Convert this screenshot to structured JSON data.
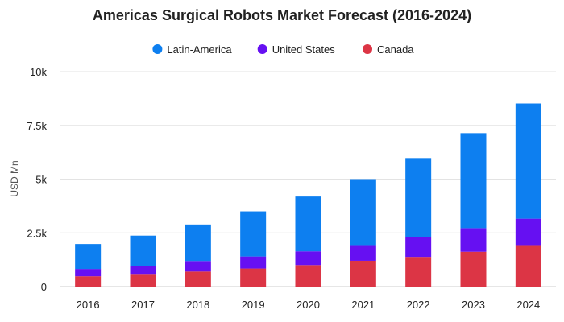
{
  "chart_data": {
    "type": "bar",
    "stacked": true,
    "title": "Americas Surgical Robots Market Forecast (2016-2024)",
    "ylabel": "USD Mn",
    "xlabel": "",
    "ylim": [
      0,
      10000
    ],
    "yticks": [
      0,
      2500,
      5000,
      7500,
      10000
    ],
    "ytick_labels": [
      "0",
      "2.5k",
      "5k",
      "7.5k",
      "10k"
    ],
    "grid": true,
    "legend_position": "top-center",
    "categories": [
      "2016",
      "2017",
      "2018",
      "2019",
      "2020",
      "2021",
      "2022",
      "2023",
      "2024"
    ],
    "series": [
      {
        "name": "Canada",
        "color": "#dc3545",
        "values": [
          480,
          590,
          700,
          840,
          1000,
          1200,
          1380,
          1620,
          1930
        ]
      },
      {
        "name": "United States",
        "color": "#6610f2",
        "values": [
          340,
          380,
          490,
          560,
          640,
          730,
          930,
          1100,
          1230
        ]
      },
      {
        "name": "Latin-America",
        "color": "#0d7ff0",
        "values": [
          1160,
          1400,
          1700,
          2100,
          2550,
          3070,
          3670,
          4420,
          5360
        ]
      }
    ],
    "legend_order": [
      "Latin-America",
      "United States",
      "Canada"
    ]
  }
}
